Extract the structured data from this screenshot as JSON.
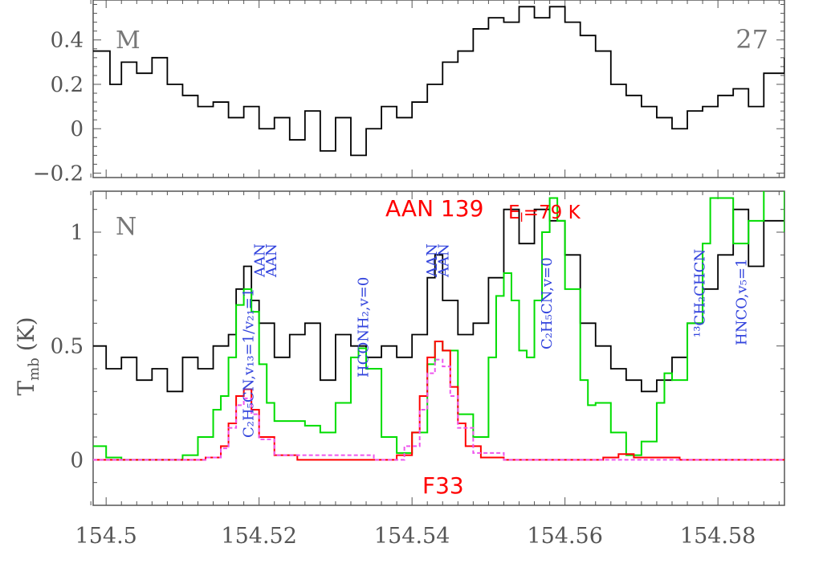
{
  "colors": {
    "observed": "#000000",
    "model_total": "#00dd00",
    "model_aan": "#ff0000",
    "model_aan_alt": "#ee55ee",
    "labels": "#3344dd",
    "axes": "#555555"
  },
  "chart_data": [
    {
      "type": "line",
      "panel_id": "M",
      "panel_label": "M",
      "panel_number": "27",
      "xlim": [
        154.4983,
        154.5887
      ],
      "ylim": [
        -0.22,
        0.58
      ],
      "yticks": [
        -0.2,
        0,
        0.2,
        0.4
      ],
      "ytick_labels": [
        "−0.2",
        "0",
        "0.2",
        "0.4"
      ],
      "series": [
        {
          "style": "step",
          "color": "#000000",
          "x": [
            154.4983,
            154.5005,
            154.502,
            154.504,
            154.506,
            154.508,
            154.51,
            154.512,
            154.514,
            154.516,
            154.518,
            154.52,
            154.522,
            154.524,
            154.526,
            154.528,
            154.53,
            154.532,
            154.534,
            154.536,
            154.538,
            154.54,
            154.542,
            154.544,
            154.546,
            154.548,
            154.55,
            154.552,
            154.554,
            154.556,
            154.558,
            154.56,
            154.562,
            154.564,
            154.566,
            154.568,
            154.57,
            154.572,
            154.574,
            154.576,
            154.578,
            154.58,
            154.582,
            154.584,
            154.586,
            154.5887
          ],
          "y": [
            0.35,
            0.2,
            0.3,
            0.25,
            0.32,
            0.2,
            0.15,
            0.1,
            0.12,
            0.05,
            0.1,
            0.0,
            0.05,
            -0.05,
            0.08,
            -0.1,
            0.05,
            -0.12,
            0.0,
            0.1,
            0.05,
            0.12,
            0.2,
            0.3,
            0.35,
            0.45,
            0.5,
            0.48,
            0.55,
            0.5,
            0.55,
            0.48,
            0.42,
            0.35,
            0.2,
            0.15,
            0.1,
            0.05,
            0.0,
            0.08,
            0.1,
            0.15,
            0.18,
            0.1,
            0.25,
            0.32
          ]
        }
      ]
    },
    {
      "type": "line",
      "panel_id": "N",
      "panel_label": "N",
      "xlim": [
        154.4983,
        154.5887
      ],
      "ylim": [
        -0.2,
        1.18
      ],
      "xticks": [
        154.5,
        154.52,
        154.54,
        154.56,
        154.58
      ],
      "xtick_labels": [
        "154.5",
        "154.52",
        "154.54",
        "154.56",
        "154.58"
      ],
      "yticks": [
        0,
        0.5,
        1
      ],
      "ytick_labels": [
        "0",
        "0.5",
        "1"
      ],
      "ylabel": "T",
      "ylabel_sub": "mb",
      "ylabel_unit": "(K)",
      "title_line": "AAN  139",
      "energy_label": "E",
      "energy_sub": "l",
      "energy_value": "=79 K",
      "bottom_label": "F33",
      "series": [
        {
          "style": "step",
          "color": "#000000",
          "x": [
            154.4983,
            154.5,
            154.502,
            154.504,
            154.506,
            154.508,
            154.51,
            154.512,
            154.514,
            154.516,
            154.517,
            154.518,
            154.519,
            154.52,
            154.522,
            154.524,
            154.526,
            154.528,
            154.53,
            154.532,
            154.534,
            154.536,
            154.538,
            154.54,
            154.542,
            154.543,
            154.544,
            154.546,
            154.548,
            154.55,
            154.552,
            154.554,
            154.556,
            154.558,
            154.56,
            154.562,
            154.564,
            154.566,
            154.568,
            154.57,
            154.572,
            154.574,
            154.576,
            154.578,
            154.58,
            154.582,
            154.584,
            154.586,
            154.5887
          ],
          "y": [
            0.5,
            0.4,
            0.45,
            0.35,
            0.4,
            0.3,
            0.45,
            0.4,
            0.5,
            0.55,
            0.75,
            0.85,
            0.7,
            0.6,
            0.45,
            0.55,
            0.6,
            0.35,
            0.55,
            0.5,
            0.45,
            0.5,
            0.45,
            0.55,
            0.8,
            0.9,
            0.7,
            0.55,
            0.6,
            0.8,
            1.1,
            0.95,
            1.1,
            1.05,
            0.9,
            0.6,
            0.5,
            0.4,
            0.35,
            0.3,
            0.35,
            0.45,
            0.6,
            0.75,
            0.9,
            1.1,
            0.85,
            1.05,
            1.0
          ]
        },
        {
          "style": "step",
          "color": "#00dd00",
          "x": [
            154.4983,
            154.5,
            154.502,
            154.504,
            154.506,
            154.508,
            154.51,
            154.512,
            154.514,
            154.515,
            154.516,
            154.517,
            154.518,
            154.519,
            154.52,
            154.521,
            154.522,
            154.524,
            154.526,
            154.528,
            154.53,
            154.532,
            154.533,
            154.534,
            154.536,
            154.538,
            154.54,
            154.542,
            154.543,
            154.544,
            154.546,
            154.548,
            154.55,
            154.551,
            154.552,
            154.553,
            154.554,
            154.555,
            154.556,
            154.557,
            154.558,
            154.559,
            154.56,
            154.562,
            154.563,
            154.564,
            154.566,
            154.568,
            154.57,
            154.572,
            154.573,
            154.574,
            154.576,
            154.578,
            154.579,
            154.58,
            154.582,
            154.584,
            154.586,
            154.5887
          ],
          "y": [
            0.06,
            0.01,
            0.0,
            0.0,
            0.0,
            0.0,
            0.02,
            0.1,
            0.22,
            0.28,
            0.45,
            0.68,
            0.75,
            0.65,
            0.42,
            0.25,
            0.17,
            0.17,
            0.15,
            0.12,
            0.25,
            0.45,
            0.49,
            0.4,
            0.1,
            0.03,
            0.12,
            0.42,
            0.52,
            0.48,
            0.2,
            0.1,
            0.45,
            0.72,
            0.82,
            0.7,
            0.48,
            0.45,
            0.7,
            1.0,
            1.15,
            1.05,
            0.75,
            0.35,
            0.24,
            0.25,
            0.12,
            0.02,
            0.08,
            0.25,
            0.38,
            0.35,
            0.6,
            0.95,
            1.15,
            1.15,
            0.95,
            1.05,
            1.2,
            1.0
          ]
        },
        {
          "style": "step",
          "color": "#ff0000",
          "x": [
            154.4983,
            154.51,
            154.513,
            154.515,
            154.516,
            154.517,
            154.518,
            154.519,
            154.52,
            154.522,
            154.525,
            154.535,
            154.538,
            154.54,
            154.541,
            154.542,
            154.543,
            154.544,
            154.545,
            154.546,
            154.547,
            154.549,
            154.552,
            154.56,
            154.565,
            154.567,
            154.569,
            154.575,
            154.5887
          ],
          "y": [
            0.0,
            0.0,
            0.01,
            0.06,
            0.16,
            0.28,
            0.31,
            0.22,
            0.1,
            0.02,
            0.0,
            0.0,
            0.02,
            0.12,
            0.28,
            0.45,
            0.52,
            0.48,
            0.32,
            0.16,
            0.06,
            0.01,
            0.0,
            0.0,
            0.01,
            0.025,
            0.01,
            0.0,
            0.0
          ]
        },
        {
          "style": "step",
          "color": "#ee55ee",
          "x": [
            154.4983,
            154.513,
            154.515,
            154.516,
            154.517,
            154.518,
            154.519,
            154.52,
            154.522,
            154.535,
            154.539,
            154.541,
            154.542,
            154.543,
            154.544,
            154.545,
            154.546,
            154.548,
            154.552,
            154.5887
          ],
          "y": [
            0.0,
            0.01,
            0.05,
            0.14,
            0.24,
            0.27,
            0.2,
            0.09,
            0.02,
            0.0,
            0.06,
            0.22,
            0.38,
            0.44,
            0.41,
            0.28,
            0.14,
            0.03,
            0.0,
            0.0
          ]
        }
      ],
      "line_labels": [
        {
          "text": "C₂H₅CN,v₁₃=1/v₂₁=1",
          "x": 154.5185,
          "color": "#3344dd"
        },
        {
          "text": "AAN",
          "x": 154.52,
          "color": "#3344dd"
        },
        {
          "text": "AAN",
          "x": 154.5215,
          "color": "#3344dd"
        },
        {
          "text": "HCONH₂,v=0",
          "x": 154.5335,
          "color": "#3344dd"
        },
        {
          "text": "AAN",
          "x": 154.5425,
          "color": "#3344dd"
        },
        {
          "text": "AAN",
          "x": 154.544,
          "color": "#3344dd"
        },
        {
          "text": "C₂H₅CN,v=0",
          "x": 154.5575,
          "color": "#3344dd"
        },
        {
          "text": "¹³CH₂CHCN",
          "x": 154.5775,
          "color": "#3344dd"
        },
        {
          "text": "HNCO,v₅=1",
          "x": 154.583,
          "color": "#3344dd"
        }
      ]
    }
  ]
}
